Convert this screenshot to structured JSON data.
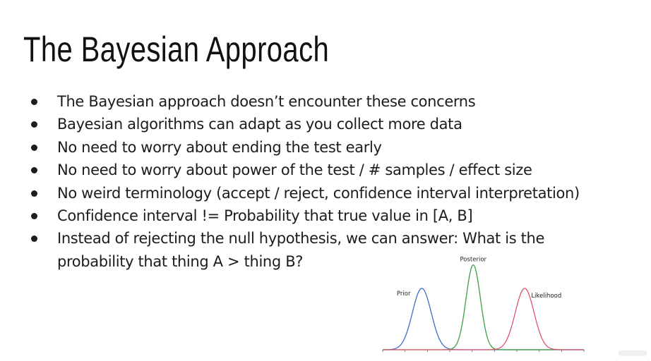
{
  "slide": {
    "title": "The Bayesian Approach",
    "bullets": [
      "The Bayesian approach doesn’t encounter these concerns",
      "Bayesian algorithms can adapt as you collect more data",
      "No need to worry about ending the test early",
      "No need to worry about power of the test / # samples / effect size",
      "No weird terminology (accept / reject, confidence interval interpretation)",
      "Confidence interval != Probability that true value in [A, B]",
      "Instead of rejecting the null hypothesis, we can answer: What is the probability that thing A > thing B?"
    ]
  },
  "chart_data": {
    "type": "line",
    "title": "",
    "xlabel": "",
    "ylabel": "",
    "grid": false,
    "legend": "none",
    "xlim": [
      0,
      9
    ],
    "ylim": [
      0,
      1
    ],
    "tick_count": 9,
    "series": [
      {
        "name": "Prior",
        "color": "#3f6fc4",
        "mean": 1.75,
        "sd": 0.42,
        "peak": 0.68
      },
      {
        "name": "Posterior",
        "color": "#3e9e48",
        "mean": 4.05,
        "sd": 0.32,
        "peak": 0.94
      },
      {
        "name": "Likelihood",
        "color": "#e0536a",
        "mean": 6.35,
        "sd": 0.42,
        "peak": 0.68
      }
    ],
    "axis_color": "#3e9e48"
  }
}
